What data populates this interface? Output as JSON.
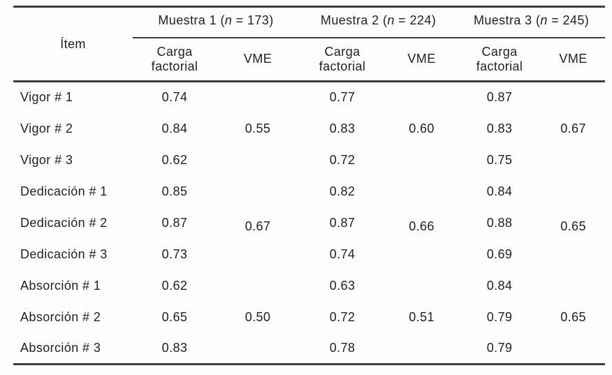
{
  "colors": {
    "text": "#1f2026",
    "rule": "#3e3e40",
    "bg": "#fdfdfd"
  },
  "table": {
    "item_header": "Ítem",
    "samples": [
      {
        "pre": "Muestra 1 (",
        "n": "n",
        "post": " = 173)",
        "cf_line1": "Carga",
        "cf_line2": "factorial",
        "vme_label": "VME"
      },
      {
        "pre": "Muestra 2 (",
        "n": "n",
        "post": " = 224)",
        "cf_line1": "Carga",
        "cf_line2": "factorial",
        "vme_label": "VME"
      },
      {
        "pre": "Muestra 3 (",
        "n": "n",
        "post": " = 245)",
        "cf_line1": "Carga",
        "cf_line2": "factorial",
        "vme_label": "VME"
      }
    ],
    "rows": [
      {
        "item": "Vigor # 1",
        "c1": "0.74",
        "v1": "",
        "c2": "0.77",
        "v2": "",
        "c3": "0.87",
        "v3": ""
      },
      {
        "item": "Vigor # 2",
        "c1": "0.84",
        "v1": "0.55",
        "c2": "0.83",
        "v2": "0.60",
        "c3": "0.83",
        "v3": "0.67"
      },
      {
        "item": "Vigor # 3",
        "c1": "0.62",
        "v1": "",
        "c2": "0.72",
        "v2": "",
        "c3": "0.75",
        "v3": ""
      },
      {
        "item": "Dedicación # 1",
        "c1": "0.85",
        "v1": "",
        "c2": "0.82",
        "v2": "",
        "c3": "0.84",
        "v3": ""
      },
      {
        "item": "Dedicación # 2",
        "c1": "0.87",
        "v1": "0.67",
        "c2": "0.87",
        "v2": "0.66",
        "c3": "0.88",
        "v3": "0.65"
      },
      {
        "item": "Dedicación # 3",
        "c1": "0.73",
        "v1": "",
        "c2": "0.74",
        "v2": "",
        "c3": "0.69",
        "v3": ""
      },
      {
        "item": "Absorción # 1",
        "c1": "0.62",
        "v1": "",
        "c2": "0.63",
        "v2": "",
        "c3": "0.84",
        "v3": ""
      },
      {
        "item": "Absorción # 2",
        "c1": "0.65",
        "v1": "0.50",
        "c2": "0.72",
        "v2": "0.51",
        "c3": "0.79",
        "v3": "0.65"
      },
      {
        "item": "Absorción # 3",
        "c1": "0.83",
        "v1": "",
        "c2": "0.78",
        "v2": "",
        "c3": "0.79",
        "v3": ""
      }
    ]
  },
  "chart_data": {
    "type": "table",
    "title": "",
    "columns": [
      "Ítem",
      "Muestra 1 (n = 173) Carga factorial",
      "Muestra 1 (n = 173) VME",
      "Muestra 2 (n = 224) Carga factorial",
      "Muestra 2 (n = 224) VME",
      "Muestra 3 (n = 245) Carga factorial",
      "Muestra 3 (n = 245) VME"
    ],
    "rows": [
      [
        "Vigor # 1",
        "0.74",
        "",
        "0.77",
        "",
        "0.87",
        ""
      ],
      [
        "Vigor # 2",
        "0.84",
        "0.55",
        "0.83",
        "0.60",
        "0.83",
        "0.67"
      ],
      [
        "Vigor # 3",
        "0.62",
        "",
        "0.72",
        "",
        "0.75",
        ""
      ],
      [
        "Dedicación # 1",
        "0.85",
        "",
        "0.82",
        "",
        "0.84",
        ""
      ],
      [
        "Dedicación # 2",
        "0.87",
        "0.67",
        "0.87",
        "0.66",
        "0.88",
        "0.65"
      ],
      [
        "Dedicación # 3",
        "0.73",
        "",
        "0.74",
        "",
        "0.69",
        ""
      ],
      [
        "Absorción # 1",
        "0.62",
        "",
        "0.63",
        "",
        "0.84",
        ""
      ],
      [
        "Absorción # 2",
        "0.65",
        "0.50",
        "0.72",
        "0.51",
        "0.79",
        "0.65"
      ],
      [
        "Absorción # 3",
        "0.83",
        "",
        "0.78",
        "",
        "0.79",
        ""
      ]
    ]
  }
}
